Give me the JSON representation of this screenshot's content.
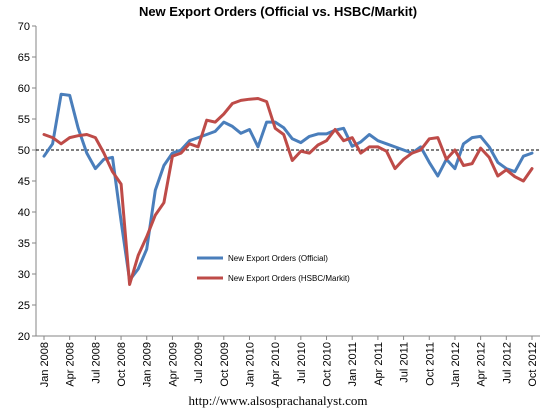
{
  "chart_data": {
    "type": "line",
    "title": "New Export Orders (Official vs. HSBC/Markit)",
    "xlabel": "",
    "ylabel": "",
    "ylim": [
      20,
      70
    ],
    "yticks": [
      20,
      25,
      30,
      35,
      40,
      45,
      50,
      55,
      60,
      65,
      70
    ],
    "reference_line": 50,
    "grid": false,
    "legend_position": "center",
    "x_tick_labels": [
      "Jan 2008",
      "Apr 2008",
      "Jul 2008",
      "Oct 2008",
      "Jan 2009",
      "Apr 2009",
      "Jul 2009",
      "Oct 2009",
      "Jan 2010",
      "Apr 2010",
      "Jul 2010",
      "Oct 2010",
      "Jan 2011",
      "Apr 2011",
      "Jul 2011",
      "Oct 2011",
      "Jan 2012",
      "Apr 2012",
      "Jul 2012",
      "Oct 2012"
    ],
    "x": [
      "Jan 2008",
      "Feb 2008",
      "Mar 2008",
      "Apr 2008",
      "May 2008",
      "Jun 2008",
      "Jul 2008",
      "Aug 2008",
      "Sep 2008",
      "Oct 2008",
      "Nov 2008",
      "Dec 2008",
      "Jan 2009",
      "Feb 2009",
      "Mar 2009",
      "Apr 2009",
      "May 2009",
      "Jun 2009",
      "Jul 2009",
      "Aug 2009",
      "Sep 2009",
      "Oct 2009",
      "Nov 2009",
      "Dec 2009",
      "Jan 2010",
      "Feb 2010",
      "Mar 2010",
      "Apr 2010",
      "May 2010",
      "Jun 2010",
      "Jul 2010",
      "Aug 2010",
      "Sep 2010",
      "Oct 2010",
      "Nov 2010",
      "Dec 2010",
      "Jan 2011",
      "Feb 2011",
      "Mar 2011",
      "Apr 2011",
      "May 2011",
      "Jun 2011",
      "Jul 2011",
      "Aug 2011",
      "Sep 2011",
      "Oct 2011",
      "Nov 2011",
      "Dec 2011",
      "Jan 2012",
      "Feb 2012",
      "Mar 2012",
      "Apr 2012",
      "May 2012",
      "Jun 2012",
      "Jul 2012",
      "Aug 2012",
      "Sep 2012",
      "Oct 2012"
    ],
    "series": [
      {
        "name": "New Export Orders (Official)",
        "color": "#4a7ebb",
        "values": [
          49.0,
          51.0,
          59.0,
          58.8,
          53.5,
          49.5,
          47.0,
          48.5,
          48.8,
          38.5,
          29.0,
          30.8,
          34.0,
          43.5,
          47.5,
          49.5,
          50.0,
          51.5,
          52.0,
          52.5,
          53.0,
          54.5,
          53.8,
          52.7,
          53.3,
          50.5,
          54.5,
          54.5,
          53.6,
          51.8,
          51.2,
          52.2,
          52.6,
          52.6,
          53.2,
          53.5,
          50.6,
          51.3,
          52.5,
          51.5,
          51.0,
          50.5,
          50.0,
          49.5,
          50.5,
          48.0,
          45.8,
          48.5,
          47.0,
          51.0,
          52.0,
          52.2,
          50.5,
          48.0,
          47.0,
          46.5,
          49.0,
          49.5
        ]
      },
      {
        "name": "New Export Orders (HSBC/Markit)",
        "color": "#be4b48",
        "values": [
          52.5,
          52.0,
          51.0,
          52.0,
          52.3,
          52.5,
          52.0,
          49.5,
          46.5,
          44.5,
          28.3,
          33.0,
          36.0,
          39.5,
          41.5,
          49.0,
          49.5,
          51.0,
          50.5,
          54.8,
          54.5,
          55.8,
          57.5,
          58.0,
          58.2,
          58.3,
          57.8,
          53.5,
          52.5,
          48.3,
          49.8,
          49.5,
          50.8,
          51.5,
          53.3,
          51.5,
          52.0,
          49.5,
          50.5,
          50.5,
          49.8,
          47.0,
          48.5,
          49.5,
          50.0,
          51.8,
          52.0,
          48.5,
          50.0,
          47.5,
          47.8,
          50.3,
          48.8,
          45.8,
          46.8,
          45.7,
          45.0,
          47.0
        ]
      }
    ]
  },
  "footer": {
    "source_url": "http://www.alsosprachanalyst.com"
  }
}
